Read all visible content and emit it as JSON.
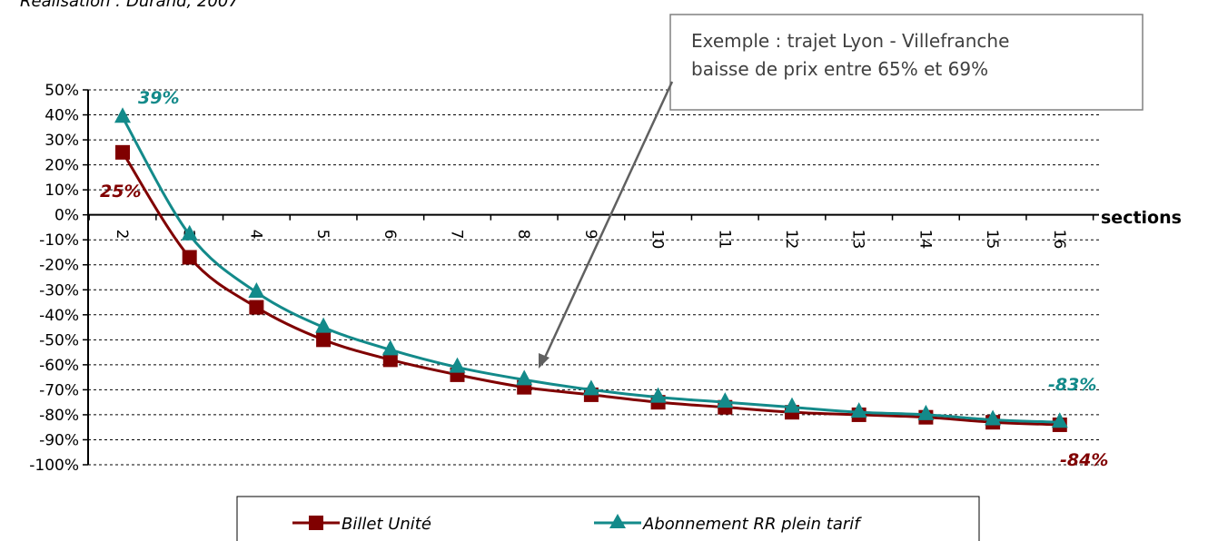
{
  "caption": "Réalisation : Durand, 2007",
  "chart_data": {
    "type": "line",
    "x": [
      2,
      3,
      4,
      5,
      6,
      7,
      8,
      9,
      10,
      11,
      12,
      13,
      14,
      15,
      16
    ],
    "xlabel": "sections",
    "ylim": [
      -100,
      50
    ],
    "yticks": [
      "50%",
      "40%",
      "30%",
      "20%",
      "10%",
      "0%",
      "-10%",
      "-20%",
      "-30%",
      "-40%",
      "-50%",
      "-60%",
      "-70%",
      "-80%",
      "-90%",
      "-100%"
    ],
    "grid": true,
    "legend": "bottom",
    "series": [
      {
        "name": "Billet Unité",
        "color": "#800000",
        "marker": "square",
        "values": [
          25,
          -17,
          -37,
          -50,
          -58,
          -64,
          -69,
          -72,
          -75,
          -77,
          -79,
          -80,
          -81,
          -83,
          -84
        ]
      },
      {
        "name": "Abonnement RR plein tarif",
        "color": "#138a8a",
        "marker": "triangle",
        "values": [
          39,
          -8,
          -31,
          -45,
          -54,
          -61,
          -66,
          -70,
          -73,
          -75,
          -77,
          -79,
          -80,
          -82,
          -83
        ]
      }
    ],
    "annotations": [
      {
        "text": "39%",
        "color": "#138a8a"
      },
      {
        "text": "25%",
        "color": "#800000"
      },
      {
        "text": "-83%",
        "color": "#138a8a"
      },
      {
        "text": "-84%",
        "color": "#800000"
      }
    ],
    "callout": {
      "line1": "Exemple : trajet Lyon - Villefranche",
      "line2": "baisse de prix entre 65% et 69%"
    }
  }
}
